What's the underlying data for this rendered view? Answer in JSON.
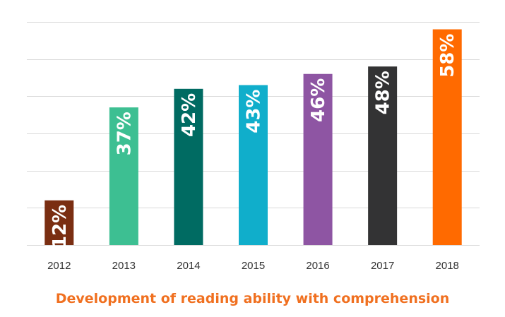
{
  "chart_data": {
    "type": "bar",
    "title": "Development of reading ability with comprehension",
    "categories": [
      "2012",
      "2013",
      "2014",
      "2015",
      "2016",
      "2017",
      "2018"
    ],
    "values": [
      12,
      37,
      42,
      43,
      46,
      48,
      58
    ],
    "value_labels": [
      "12%",
      "37%",
      "42%",
      "43%",
      "46%",
      "48%",
      "58%"
    ],
    "bar_colors": [
      "#7a2e12",
      "#3dbf92",
      "#006b62",
      "#10aecb",
      "#8e55a3",
      "#333334",
      "#ff6a00"
    ],
    "title_color": "#f07020",
    "ylim": [
      0,
      60
    ],
    "grid": true,
    "xlabel": "",
    "ylabel": ""
  }
}
